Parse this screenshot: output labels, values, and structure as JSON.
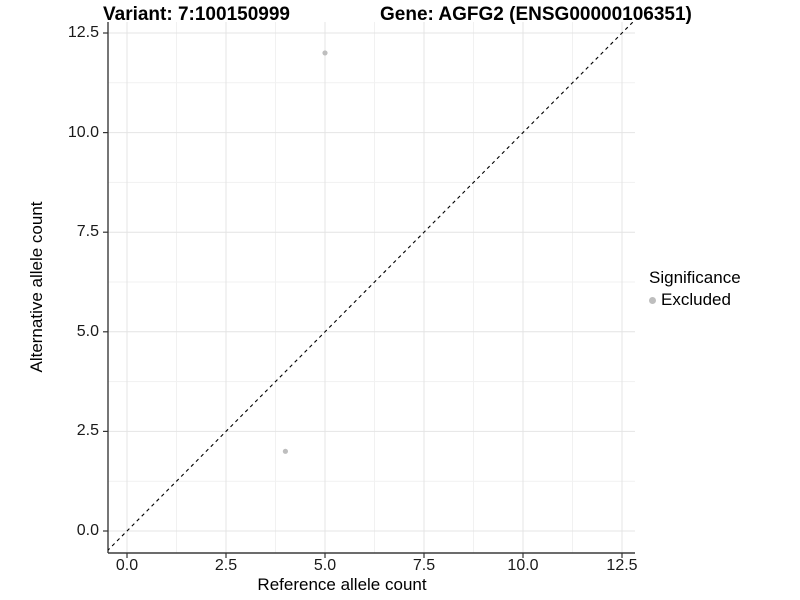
{
  "figure": {
    "title_variant": "Variant: 7:100150999",
    "title_gene": "Gene: AGFG2 (ENSG00000106351)"
  },
  "chart_data": {
    "type": "scatter",
    "title": "Variant: 7:100150999   Gene: AGFG2 (ENSG00000106351)",
    "xlabel": "Reference allele count",
    "ylabel": "Alternative allele count",
    "xlim": [
      -0.55,
      12.8
    ],
    "ylim": [
      -0.55,
      12.8
    ],
    "x_ticks": {
      "values": [
        0,
        2.5,
        5,
        7.5,
        10,
        12.5
      ],
      "labels": [
        "0.0",
        "2.5",
        "5.0",
        "7.5",
        "10.0",
        "12.5"
      ]
    },
    "y_ticks": {
      "values": [
        0,
        2.5,
        5,
        7.5,
        10,
        12.5
      ],
      "labels": [
        "0.0",
        "2.5",
        "5.0",
        "7.5",
        "10.0",
        "12.5"
      ]
    },
    "minor_tick_values": [
      1.25,
      3.75,
      6.25,
      8.75,
      11.25
    ],
    "grid": true,
    "series": [
      {
        "name": "Excluded",
        "marker": "circle",
        "color": "#bebebe",
        "points": [
          {
            "x": 5,
            "y": 12
          },
          {
            "x": 4,
            "y": 2
          }
        ]
      }
    ],
    "reference_line": {
      "type": "identity",
      "slope": 1,
      "intercept": 0,
      "style": "dashed",
      "color": "#000000"
    },
    "legend": {
      "title": "Significance",
      "position": "right",
      "entries": [
        {
          "label": "Excluded",
          "marker": "circle",
          "color": "#bebebe"
        }
      ]
    }
  },
  "colors": {
    "background": "#ffffff",
    "grid_major": "#e4e4e4",
    "grid_minor": "#f1f1f1",
    "axis_line": "#3c3c3c",
    "tick_mark": "#333333",
    "point": "#bebebe",
    "text": "#000000"
  }
}
